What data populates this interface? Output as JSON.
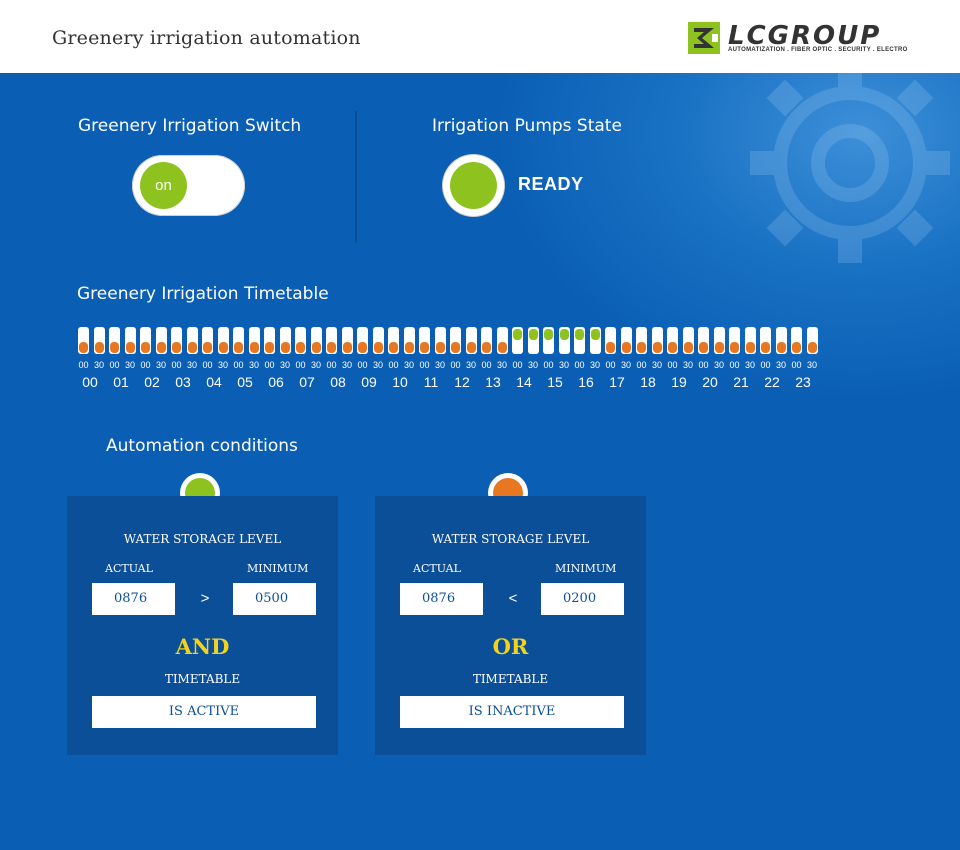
{
  "header": {
    "title": "Greenery irrigation automation",
    "logo_name": "LCGROUP",
    "logo_tagline": "AUTOMATIZATION . FIBER OPTIC . SECURITY . ELECTRO"
  },
  "switch_section": {
    "title": "Greenery Irrigation Switch",
    "toggle_label": "on",
    "toggle_on": true
  },
  "pumps_section": {
    "title": "Irrigation Pumps State",
    "state": "READY"
  },
  "timetable": {
    "title": "Greenery Irrigation Timetable",
    "hours": [
      "00",
      "01",
      "02",
      "03",
      "04",
      "05",
      "06",
      "07",
      "08",
      "09",
      "10",
      "11",
      "12",
      "13",
      "14",
      "15",
      "16",
      "17",
      "18",
      "19",
      "20",
      "21",
      "22",
      "23"
    ],
    "minute_labels": [
      "00",
      "30"
    ],
    "active_hours": [
      "14",
      "15",
      "16"
    ]
  },
  "automation": {
    "title": "Automation conditions",
    "conditions": [
      {
        "status_color": "#8dc21f",
        "title": "WATER STORAGE LEVEL",
        "actual_label": "ACTUAL",
        "minimum_label": "MINIMUM",
        "actual_value": "0876",
        "operator": ">",
        "minimum_value": "0500",
        "logic": "AND",
        "timetable_label": "TIMETABLE",
        "timetable_status": "IS ACTIVE"
      },
      {
        "status_color": "#e87722",
        "title": "WATER STORAGE LEVEL",
        "actual_label": "ACTUAL",
        "minimum_label": "MINIMUM",
        "actual_value": "0876",
        "operator": "<",
        "minimum_value": "0200",
        "logic": "OR",
        "timetable_label": "TIMETABLE",
        "timetable_status": "IS INACTIVE"
      }
    ]
  },
  "colors": {
    "background": "#0a5fb4",
    "active": "#8dc21f",
    "inactive": "#e87722",
    "logic_text": "#f2d21b"
  }
}
